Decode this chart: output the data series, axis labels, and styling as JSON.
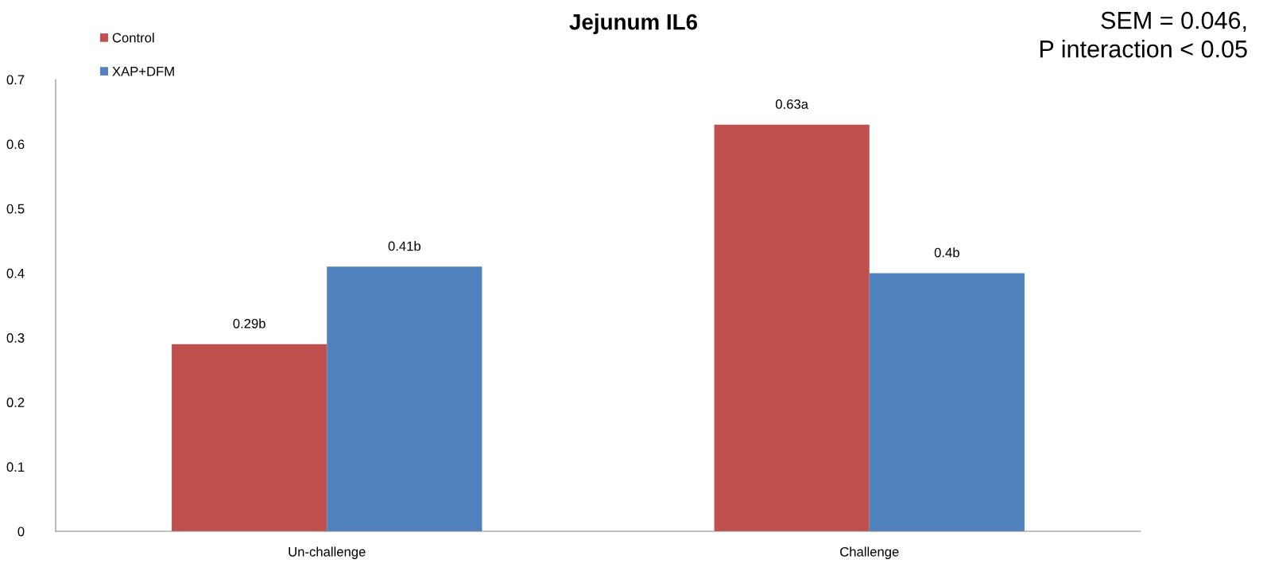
{
  "chart_data": {
    "type": "bar",
    "title": "Jejunum IL6",
    "categories": [
      "Un-challenge",
      "Challenge"
    ],
    "series": [
      {
        "name": "Control",
        "color": "#c0504d",
        "values": [
          0.29,
          0.63
        ],
        "value_labels": [
          "0.29b",
          "0.63a"
        ]
      },
      {
        "name": "XAP+DFM",
        "color": "#4f81bd",
        "values": [
          0.41,
          0.4
        ],
        "value_labels": [
          "0.41b",
          "0.4b"
        ]
      }
    ],
    "ylim": [
      0,
      0.7
    ],
    "yticks": [
      0,
      0.1,
      0.2,
      0.3,
      0.4,
      0.5,
      0.6,
      0.7
    ],
    "grid": false,
    "legend": "top left",
    "annotations": [
      "SEM = 0.046,",
      "P interaction < 0.05"
    ]
  }
}
